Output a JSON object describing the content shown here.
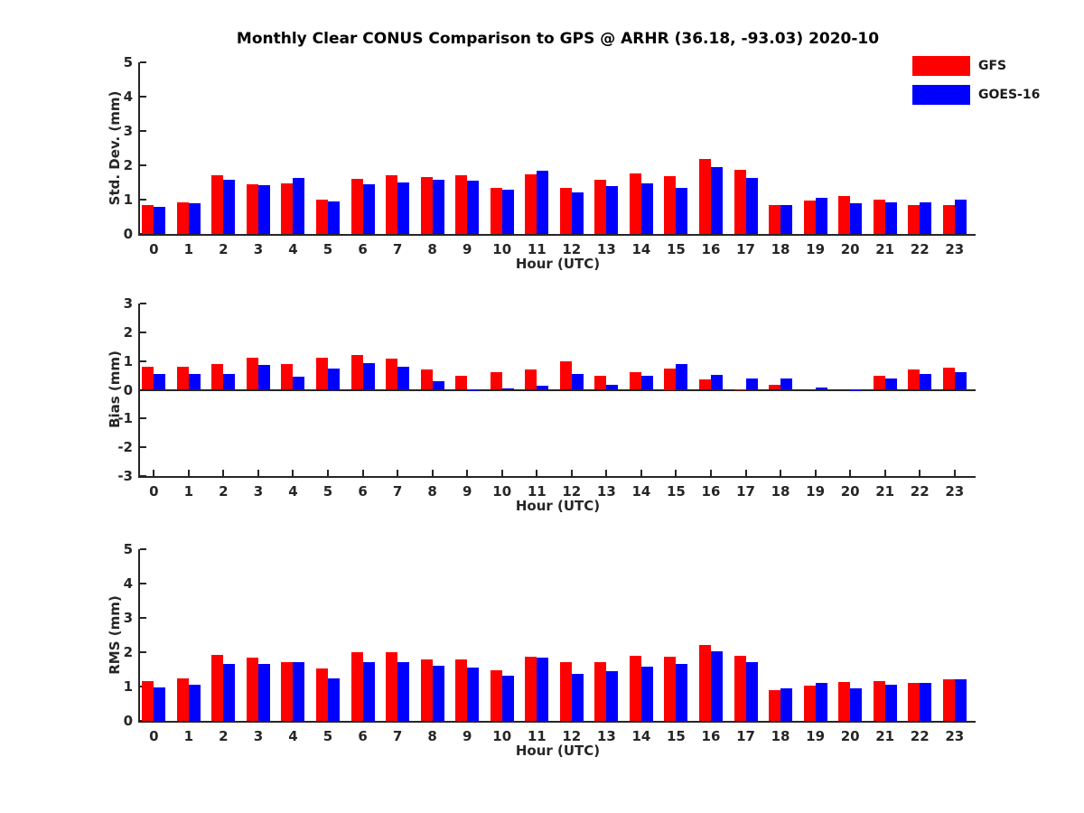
{
  "title": "Monthly Clear CONUS Comparison to GPS @ ARHR (36.18, -93.03) 2020-10",
  "colors": {
    "gfs": "#ff0000",
    "goes16": "#0000ff",
    "axis": "#262626"
  },
  "legend": [
    {
      "label": "GFS",
      "color": "#ff0000"
    },
    {
      "label": "GOES-16",
      "color": "#0000ff"
    }
  ],
  "chart_data": [
    {
      "type": "bar",
      "ylabel": "Std. Dev. (mm)",
      "xlabel": "Hour (UTC)",
      "ylim": [
        0,
        5
      ],
      "yticks": [
        0,
        1,
        2,
        3,
        4,
        5
      ],
      "grid": false,
      "legend_position": "upper-right-outside",
      "categories": [
        "0",
        "1",
        "2",
        "3",
        "4",
        "5",
        "6",
        "7",
        "8",
        "9",
        "10",
        "11",
        "12",
        "13",
        "14",
        "15",
        "16",
        "17",
        "18",
        "19",
        "20",
        "21",
        "22",
        "23"
      ],
      "series": [
        {
          "name": "GFS",
          "color": "#ff0000",
          "values": [
            0.85,
            0.93,
            1.72,
            1.45,
            1.48,
            1.0,
            1.6,
            1.7,
            1.66,
            1.71,
            1.33,
            1.73,
            1.33,
            1.58,
            1.77,
            1.68,
            2.18,
            1.88,
            0.85,
            0.97,
            1.1,
            1.0,
            0.85,
            0.85
          ]
        },
        {
          "name": "GOES-16",
          "color": "#0000ff",
          "values": [
            0.8,
            0.9,
            1.57,
            1.43,
            1.62,
            0.95,
            1.44,
            1.5,
            1.57,
            1.55,
            1.3,
            1.83,
            1.21,
            1.4,
            1.48,
            1.34,
            1.96,
            1.64,
            0.85,
            1.06,
            0.89,
            0.92,
            0.93,
            1.0
          ]
        }
      ]
    },
    {
      "type": "bar",
      "ylabel": "Bias (mm)",
      "xlabel": "Hour (UTC)",
      "ylim": [
        -3,
        3
      ],
      "yticks": [
        -3,
        -2,
        -1,
        0,
        1,
        2,
        3
      ],
      "grid": false,
      "categories": [
        "0",
        "1",
        "2",
        "3",
        "4",
        "5",
        "6",
        "7",
        "8",
        "9",
        "10",
        "11",
        "12",
        "13",
        "14",
        "15",
        "16",
        "17",
        "18",
        "19",
        "20",
        "21",
        "22",
        "23"
      ],
      "series": [
        {
          "name": "GFS",
          "color": "#ff0000",
          "values": [
            0.8,
            0.8,
            0.9,
            1.13,
            0.9,
            1.1,
            1.2,
            1.08,
            0.7,
            0.5,
            0.6,
            0.7,
            1.0,
            0.48,
            0.6,
            0.75,
            0.35,
            0.03,
            0.18,
            0.0,
            0.0,
            0.48,
            0.7,
            0.78
          ]
        },
        {
          "name": "GOES-16",
          "color": "#0000ff",
          "values": [
            0.55,
            0.55,
            0.55,
            0.85,
            0.45,
            0.75,
            0.92,
            0.8,
            0.3,
            -0.03,
            0.04,
            0.13,
            0.55,
            0.17,
            0.48,
            0.88,
            0.53,
            0.38,
            0.4,
            0.08,
            -0.04,
            0.4,
            0.55,
            0.62
          ]
        }
      ]
    },
    {
      "type": "bar",
      "ylabel": "RMS (mm)",
      "xlabel": "Hour (UTC)",
      "ylim": [
        0,
        5
      ],
      "yticks": [
        0,
        1,
        2,
        3,
        4,
        5
      ],
      "grid": false,
      "categories": [
        "0",
        "1",
        "2",
        "3",
        "4",
        "5",
        "6",
        "7",
        "8",
        "9",
        "10",
        "11",
        "12",
        "13",
        "14",
        "15",
        "16",
        "17",
        "18",
        "19",
        "20",
        "21",
        "22",
        "23"
      ],
      "series": [
        {
          "name": "GFS",
          "color": "#ff0000",
          "values": [
            1.15,
            1.25,
            1.92,
            1.85,
            1.72,
            1.52,
            2.0,
            2.0,
            1.8,
            1.78,
            1.48,
            1.87,
            1.72,
            1.7,
            1.9,
            1.88,
            2.2,
            1.9,
            0.9,
            1.03,
            1.13,
            1.15,
            1.1,
            1.2
          ]
        },
        {
          "name": "GOES-16",
          "color": "#0000ff",
          "values": [
            0.98,
            1.05,
            1.65,
            1.65,
            1.7,
            1.23,
            1.72,
            1.7,
            1.6,
            1.55,
            1.32,
            1.83,
            1.37,
            1.45,
            1.57,
            1.65,
            2.02,
            1.7,
            0.95,
            1.1,
            0.95,
            1.05,
            1.1,
            1.22
          ]
        }
      ]
    }
  ]
}
